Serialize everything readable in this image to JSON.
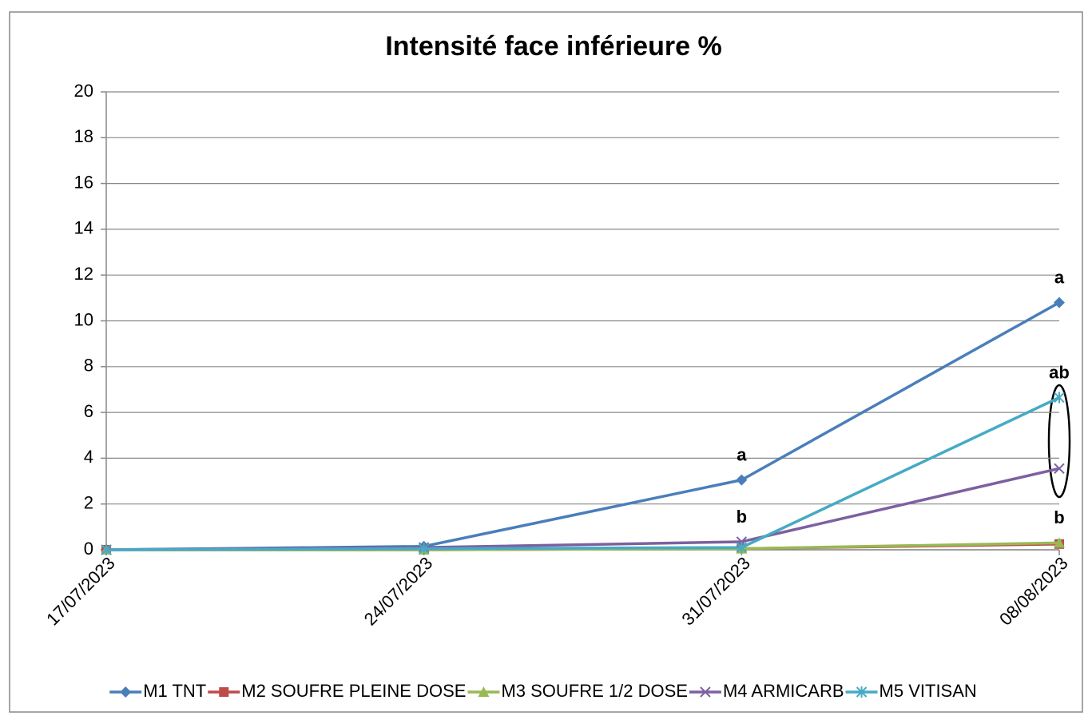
{
  "chart_data": {
    "type": "line",
    "title": "Intensité face inférieure %",
    "categories": [
      "17/07/2023",
      "24/07/2023",
      "31/07/2023",
      "08/08/2023"
    ],
    "series": [
      {
        "name": "M1 TNT",
        "color": "#4a7ebb",
        "marker": "diamond",
        "values": [
          0,
          0.15,
          3.05,
          10.8
        ]
      },
      {
        "name": "M2 SOUFRE PLEINE DOSE",
        "color": "#be4b48",
        "marker": "square",
        "values": [
          0,
          0,
          0.05,
          0.25
        ]
      },
      {
        "name": "M3 SOUFRE 1/2 DOSE",
        "color": "#98b954",
        "marker": "triangle",
        "values": [
          0,
          0,
          0.05,
          0.3
        ]
      },
      {
        "name": "M4 ARMICARB",
        "color": "#7d60a0",
        "marker": "x",
        "values": [
          0,
          0.1,
          0.35,
          3.55
        ]
      },
      {
        "name": "M5 VITISAN",
        "color": "#46aac5",
        "marker": "asterisk",
        "values": [
          0,
          0.05,
          0.1,
          6.65
        ]
      }
    ],
    "annotations": [
      {
        "text": "a",
        "category": "31/07/2023",
        "series": "M1 TNT"
      },
      {
        "text": "b",
        "category": "31/07/2023",
        "series": "M4 ARMICARB"
      },
      {
        "text": "a",
        "category": "08/08/2023",
        "series": "M1 TNT"
      },
      {
        "text": "ab",
        "category": "08/08/2023",
        "series": "M5 VITISAN"
      },
      {
        "text": "b",
        "category": "08/08/2023",
        "series": "M3 SOUFRE 1/2 DOSE"
      }
    ],
    "ylim": [
      0,
      20
    ],
    "yticks": [
      0,
      2,
      4,
      6,
      8,
      10,
      12,
      14,
      16,
      18,
      20
    ],
    "grid": true,
    "legend": "bottom"
  }
}
